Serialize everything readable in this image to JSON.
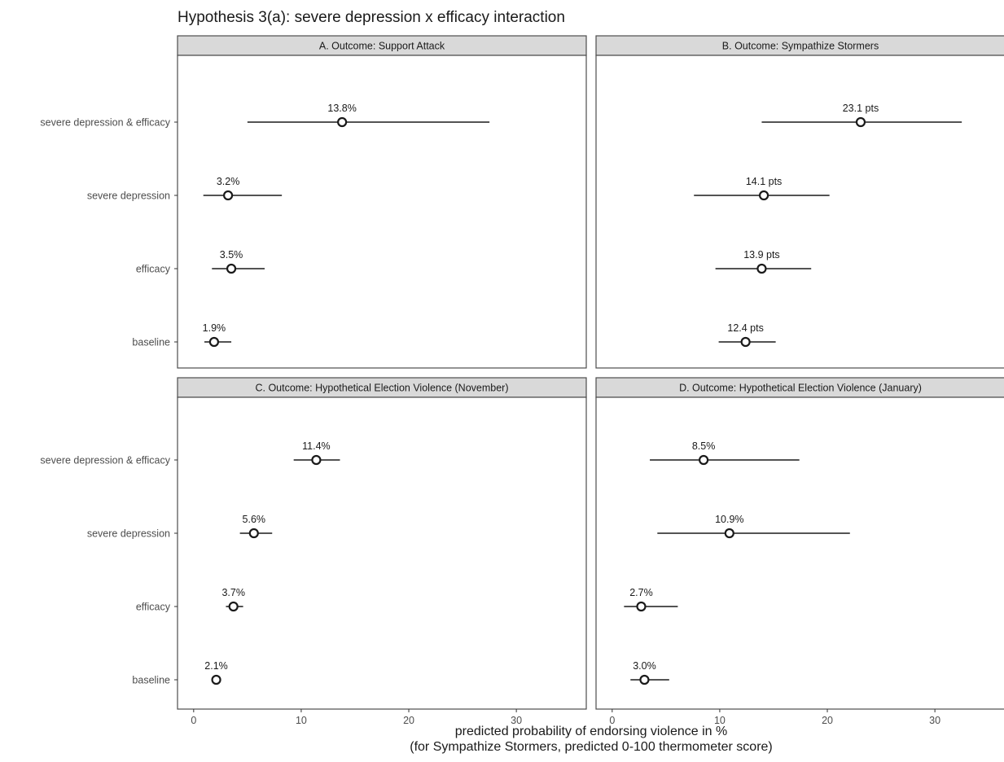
{
  "chart_data": {
    "type": "dot-interval",
    "title": "Hypothesis 3(a): severe depression x efficacy interaction",
    "xlabel": "predicted probability of endorsing violence in %",
    "xlabel_sub": "(for Sympathize Stormers, predicted 0-100 thermometer score)",
    "ylabel": "",
    "xlim": [
      -1.5,
      36.5
    ],
    "x_ticks": [
      0,
      10,
      20,
      30
    ],
    "x_tick_labels": [
      "0",
      "10",
      "20",
      "30"
    ],
    "categories": [
      "severe depression & efficacy",
      "severe depression",
      "efficacy",
      "baseline"
    ],
    "grid": false,
    "legend": "none",
    "panels": [
      {
        "strip": "A. Outcome: Support Attack",
        "points": [
          {
            "category": "severe depression & efficacy",
            "estimate": 13.8,
            "lower": 5.0,
            "upper": 27.5,
            "label": "13.8%"
          },
          {
            "category": "severe depression",
            "estimate": 3.2,
            "lower": 0.9,
            "upper": 8.2,
            "label": "3.2%"
          },
          {
            "category": "efficacy",
            "estimate": 3.5,
            "lower": 1.7,
            "upper": 6.6,
            "label": "3.5%"
          },
          {
            "category": "baseline",
            "estimate": 1.9,
            "lower": 1.0,
            "upper": 3.5,
            "label": "1.9%"
          }
        ]
      },
      {
        "strip": "B. Outcome: Sympathize Stormers",
        "points": [
          {
            "category": "severe depression & efficacy",
            "estimate": 23.1,
            "lower": 13.9,
            "upper": 32.5,
            "label": "23.1 pts"
          },
          {
            "category": "severe depression",
            "estimate": 14.1,
            "lower": 7.6,
            "upper": 20.2,
            "label": "14.1 pts"
          },
          {
            "category": "efficacy",
            "estimate": 13.9,
            "lower": 9.6,
            "upper": 18.5,
            "label": "13.9 pts"
          },
          {
            "category": "baseline",
            "estimate": 12.4,
            "lower": 9.9,
            "upper": 15.2,
            "label": "12.4 pts"
          }
        ]
      },
      {
        "strip": "C. Outcome: Hypothetical Election Violence (November)",
        "points": [
          {
            "category": "severe depression & efficacy",
            "estimate": 11.4,
            "lower": 9.3,
            "upper": 13.6,
            "label": "11.4%"
          },
          {
            "category": "severe depression",
            "estimate": 5.6,
            "lower": 4.3,
            "upper": 7.3,
            "label": "5.6%"
          },
          {
            "category": "efficacy",
            "estimate": 3.7,
            "lower": 3.0,
            "upper": 4.6,
            "label": "3.7%"
          },
          {
            "category": "baseline",
            "estimate": 2.1,
            "lower": 1.7,
            "upper": 2.5,
            "label": "2.1%"
          }
        ]
      },
      {
        "strip": "D. Outcome: Hypothetical Election Violence (January)",
        "points": [
          {
            "category": "severe depression & efficacy",
            "estimate": 8.5,
            "lower": 3.5,
            "upper": 17.4,
            "label": "8.5%"
          },
          {
            "category": "severe depression",
            "estimate": 10.9,
            "lower": 4.2,
            "upper": 22.1,
            "label": "10.9%"
          },
          {
            "category": "efficacy",
            "estimate": 2.7,
            "lower": 1.1,
            "upper": 6.1,
            "label": "2.7%"
          },
          {
            "category": "baseline",
            "estimate": 3.0,
            "lower": 1.7,
            "upper": 5.3,
            "label": "3.0%"
          }
        ]
      }
    ]
  }
}
